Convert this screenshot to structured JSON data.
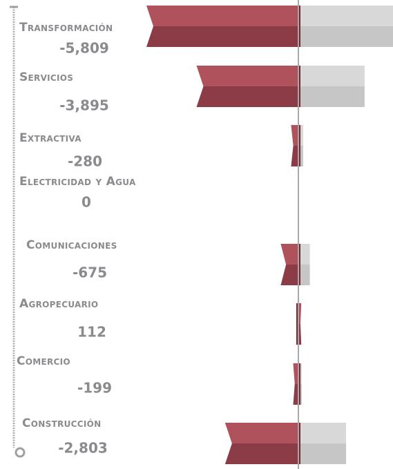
{
  "chart_data": {
    "type": "bar",
    "orientation": "horizontal",
    "categories": [
      "Transformación",
      "Servicios",
      "Extractiva",
      "Electricidad y Agua",
      "Comunicaciones",
      "Agropecuario",
      "Comercio",
      "Construcción"
    ],
    "values": [
      -5809,
      -3895,
      -280,
      0,
      -675,
      112,
      -199,
      -2803
    ],
    "value_labels": [
      "-5,809",
      "-3,895",
      "-280",
      "0",
      "-675",
      "112",
      "-199",
      "-2,803"
    ],
    "color": "#a84a55"
  }
}
